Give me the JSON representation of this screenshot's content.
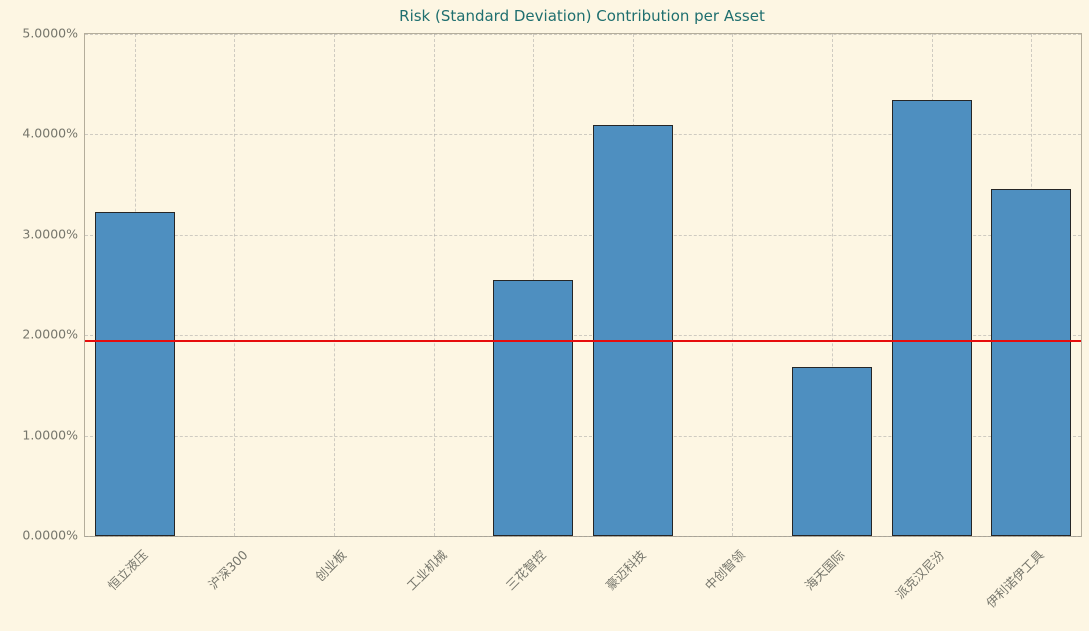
{
  "chart_data": {
    "type": "bar",
    "title": "Risk (Standard Deviation) Contribution per Asset",
    "categories": [
      "恒立液压",
      "沪深300",
      "创业板",
      "工业机械",
      "三花智控",
      "豪迈科技",
      "中创智领",
      "海天国际",
      "派克汉尼汾",
      "伊利诺伊工具"
    ],
    "values": [
      3.23,
      0,
      0,
      0,
      2.55,
      4.09,
      0,
      1.68,
      4.34,
      3.46
    ],
    "unit": "%",
    "xlabel": "",
    "ylabel": "",
    "ylim": [
      0,
      5
    ],
    "yticks": [
      "0.0000%",
      "1.0000%",
      "2.0000%",
      "3.0000%",
      "4.0000%",
      "5.0000%"
    ],
    "ytick_values": [
      0,
      1,
      2,
      3,
      4,
      5
    ],
    "reference_line_value": 1.95,
    "grid": "dashed",
    "legend": "none",
    "colors": {
      "background": "#fdf6e3",
      "bar_fill": "#4e8fc0",
      "bar_edge": "#262626",
      "reference_line": "#e60d0d",
      "title": "#1f6f6f",
      "tick_label": "#76766c",
      "grid": "#969696",
      "spine": "#b4ad9b"
    }
  }
}
